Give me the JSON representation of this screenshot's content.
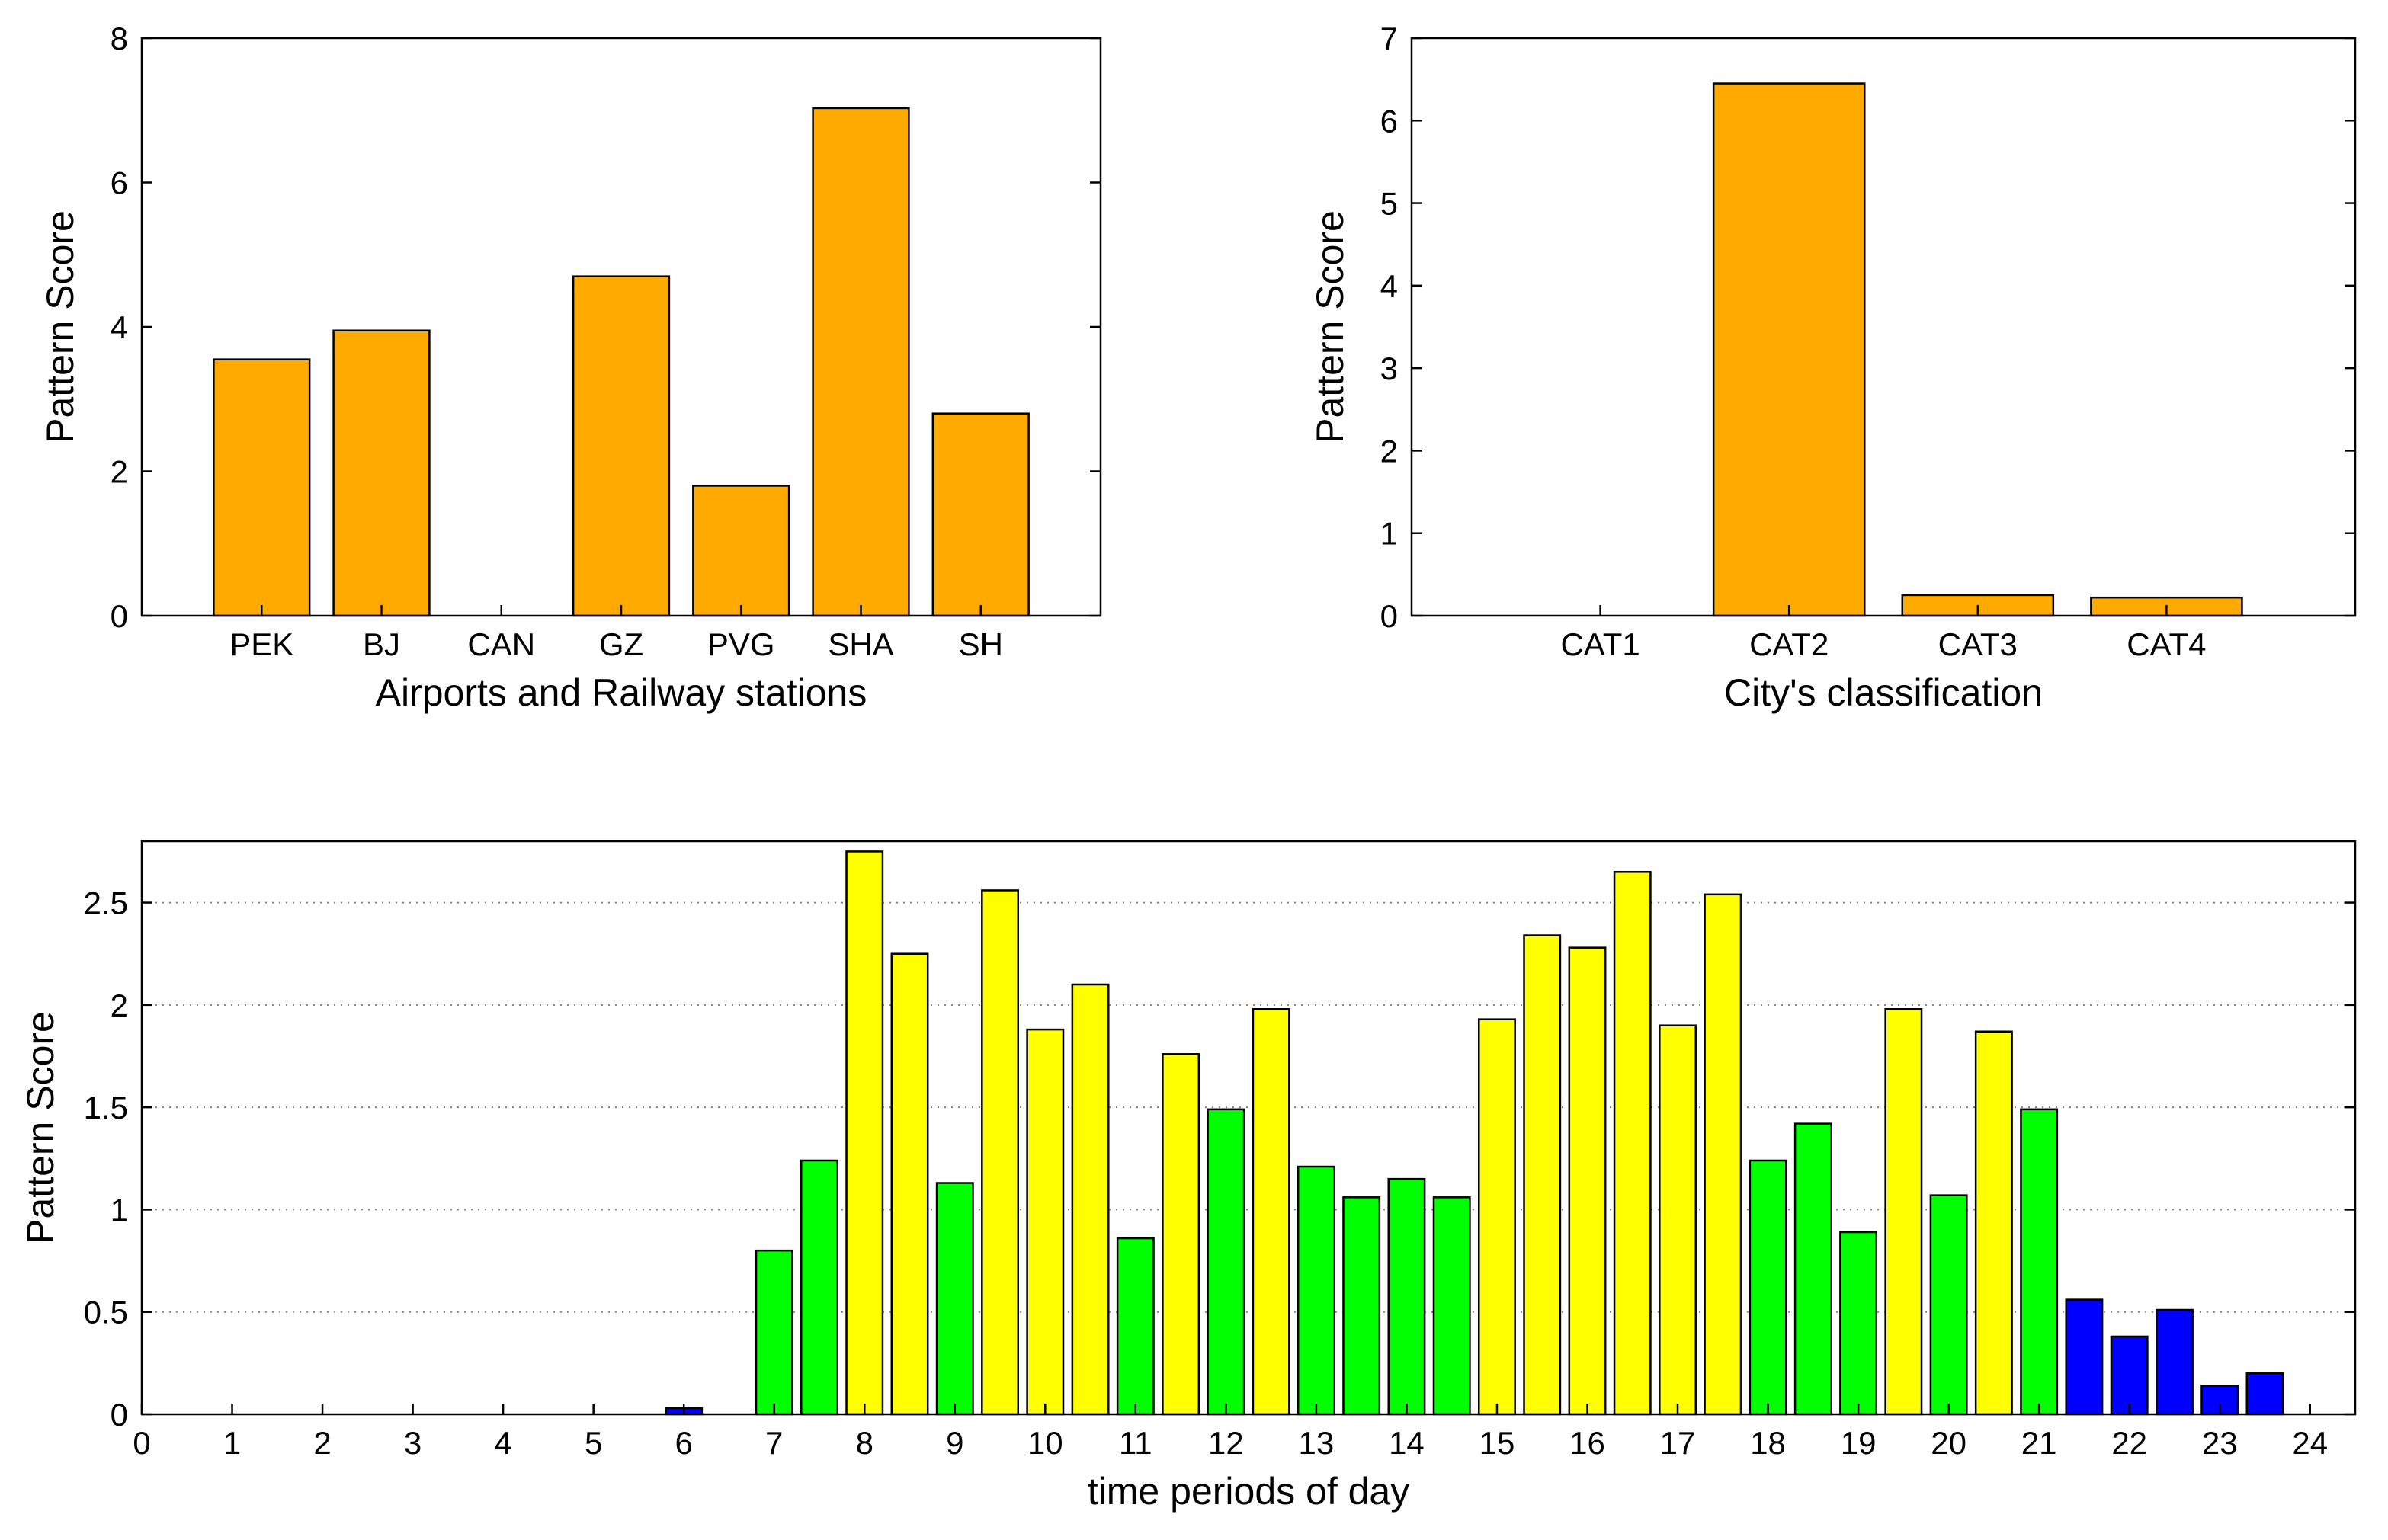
{
  "colors": {
    "orange": "#FFAA00",
    "yellow": "#FFFF00",
    "green": "#00FF00",
    "blue": "#0000FF",
    "grid": "#808080"
  },
  "chart_data": [
    {
      "type": "bar",
      "xlabel": "Airports and Railway stations",
      "ylabel": "Pattern Score",
      "categories": [
        "PEK",
        "BJ",
        "CAN",
        "GZ",
        "PVG",
        "SHA",
        "SH"
      ],
      "values": [
        3.55,
        3.95,
        0,
        4.7,
        1.8,
        7.03,
        2.8
      ],
      "ylim": [
        0,
        8
      ],
      "yticks": [
        0,
        2,
        4,
        6,
        8
      ],
      "grid": false,
      "bar_color": "orange"
    },
    {
      "type": "bar",
      "xlabel": "City's classification",
      "ylabel": "Pattern Score",
      "categories": [
        "CAT1",
        "CAT2",
        "CAT3",
        "CAT4"
      ],
      "values": [
        0,
        6.45,
        0.25,
        0.22
      ],
      "ylim": [
        0,
        7
      ],
      "yticks": [
        0,
        1,
        2,
        3,
        4,
        5,
        6,
        7
      ],
      "grid": false,
      "bar_color": "orange"
    },
    {
      "type": "bar",
      "xlabel": "time periods of day",
      "ylabel": "Pattern Score",
      "xlim": [
        0,
        24.5
      ],
      "xticks": [
        0,
        1,
        2,
        3,
        4,
        5,
        6,
        7,
        8,
        9,
        10,
        11,
        12,
        13,
        14,
        15,
        16,
        17,
        18,
        19,
        20,
        21,
        22,
        23,
        24
      ],
      "ylim": [
        0,
        2.8
      ],
      "yticks": [
        0,
        0.5,
        1,
        1.5,
        2,
        2.5
      ],
      "ytick_labels": [
        "0",
        "0.5",
        "1",
        "1.5",
        "2",
        "2.5"
      ],
      "grid": true,
      "bar_width": 0.4,
      "x": [
        6,
        7,
        7.5,
        8,
        8.5,
        9,
        9.5,
        10,
        10.5,
        11,
        11.5,
        12,
        12.5,
        13,
        13.5,
        14,
        14.5,
        15,
        15.5,
        16,
        16.5,
        17,
        17.5,
        18,
        18.5,
        19,
        19.5,
        20,
        20.5,
        21,
        21.5,
        22,
        22.5,
        23,
        23.5
      ],
      "values": [
        0.03,
        0.8,
        1.24,
        2.75,
        2.25,
        1.13,
        2.56,
        1.88,
        2.1,
        0.86,
        1.76,
        1.49,
        1.98,
        1.21,
        1.06,
        1.15,
        1.06,
        1.93,
        2.34,
        2.28,
        2.65,
        1.9,
        2.54,
        1.24,
        1.42,
        0.89,
        1.98,
        1.07,
        1.87,
        1.49,
        0.56,
        0.38,
        0.51,
        0.14,
        0.2
      ],
      "bar_colors": [
        "blue",
        "green",
        "green",
        "yellow",
        "yellow",
        "green",
        "yellow",
        "yellow",
        "yellow",
        "green",
        "yellow",
        "green",
        "yellow",
        "green",
        "green",
        "green",
        "green",
        "yellow",
        "yellow",
        "yellow",
        "yellow",
        "yellow",
        "yellow",
        "green",
        "green",
        "green",
        "yellow",
        "green",
        "yellow",
        "green",
        "blue",
        "blue",
        "blue",
        "blue",
        "blue"
      ]
    }
  ]
}
